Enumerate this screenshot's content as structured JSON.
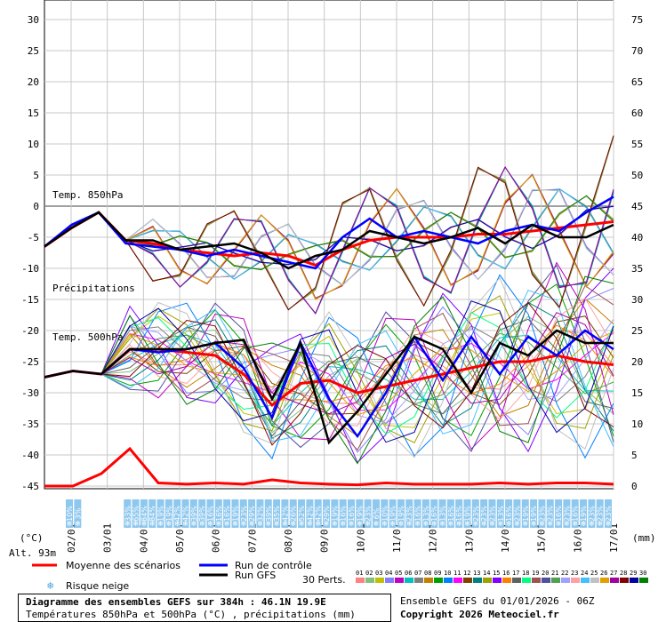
{
  "chart_data": {
    "type": "line",
    "y_left": {
      "unit": "(°C)",
      "ticks": [
        30,
        25,
        20,
        15,
        10,
        5,
        0,
        -5,
        -10,
        -15,
        -20,
        -25,
        -30,
        -35,
        -40,
        -45
      ]
    },
    "y_right": {
      "unit": "(mm)",
      "ticks": [
        75,
        70,
        65,
        60,
        55,
        50,
        45,
        40,
        35,
        30,
        25,
        20,
        15,
        10,
        5,
        0
      ]
    },
    "x_dates": [
      "02/01",
      "03/01",
      "04/01",
      "05/01",
      "06/01",
      "07/01",
      "08/01",
      "09/01",
      "10/01",
      "11/01",
      "12/01",
      "13/01",
      "14/01",
      "15/01",
      "16/01",
      "17/01"
    ],
    "panel_labels": {
      "t850": "Temp. 850hPa",
      "precip": "Précipitations",
      "t500": "Temp. 500hPa"
    },
    "altitude": "Alt. 93m",
    "snow_risk": [
      "10%",
      "3%",
      "",
      "",
      "",
      "",
      "",
      "33%",
      "65%",
      "84%",
      "84%",
      "19%",
      "19%",
      "42%",
      "42%",
      "39%",
      "39%",
      "16%",
      "16%",
      "16%",
      "19%",
      "23%",
      "29%",
      "32%",
      "39%",
      "35%",
      "42%",
      "26%",
      "52%",
      "42%",
      "42%",
      "29%",
      "19%",
      "16%",
      "16%",
      "19%",
      "23%",
      "6%",
      "10%",
      "19%",
      "19%",
      "23%",
      "16%",
      "13%",
      "16%",
      "13%",
      "16%",
      "16%",
      "19%",
      "23%",
      "23%",
      "23%",
      "13%",
      "16%",
      "23%",
      "19%",
      "19%",
      "23%",
      "23%",
      "16%",
      "23%",
      "16%",
      "19%",
      "23%",
      "23%",
      "23%"
    ],
    "series": [
      {
        "name": "Moyenne des scénarios",
        "color": "#ff0000",
        "t850": [
          -6.5,
          -3.5,
          -1,
          -5.5,
          -6,
          -7,
          -7.5,
          -8,
          -7.5,
          -8,
          -9.5,
          -7,
          -5.5,
          -5,
          -5,
          -5,
          -4.5,
          -4.5,
          -4,
          -3.5,
          -3,
          -2.5
        ],
        "t500": [
          -27.5,
          -26.5,
          -27,
          -23,
          -23,
          -23.5,
          -24,
          -27,
          -32,
          -28.5,
          -28,
          -30,
          -29,
          -28,
          -27,
          -26,
          -25,
          -25,
          -24,
          -25,
          -25.5
        ],
        "precip": [
          0,
          0,
          2,
          6,
          0.5,
          0.3,
          0.5,
          0.3,
          1,
          0.5,
          0.3,
          0.2,
          0.5,
          0.3,
          0.3,
          0.3,
          0.5,
          0.3,
          0.5,
          0.5,
          0.3
        ]
      },
      {
        "name": "Run de contrôle",
        "color": "#0000ff",
        "t850": [
          -6.5,
          -3,
          -1,
          -6,
          -6.5,
          -7,
          -8,
          -7,
          -8,
          -9,
          -10,
          -5,
          -2,
          -5,
          -4,
          -5,
          -6,
          -4,
          -3,
          -4,
          -1,
          1.5
        ],
        "t500": [
          -27.5,
          -26.5,
          -27,
          -23,
          -23.5,
          -23,
          -22,
          -26,
          -34,
          -22,
          -31,
          -37,
          -30,
          -21,
          -28,
          -21,
          -27,
          -21,
          -24,
          -20,
          -23
        ]
      },
      {
        "name": "Run GFS",
        "color": "#000000",
        "t850": [
          -6.5,
          -3.5,
          -1,
          -5.5,
          -5.5,
          -7,
          -6.5,
          -6,
          -7.5,
          -10,
          -8,
          -7,
          -4,
          -5,
          -6,
          -5,
          -3.5,
          -6,
          -3,
          -5,
          -5,
          -3
        ],
        "t500": [
          -27.5,
          -26.5,
          -27,
          -23,
          -23,
          -23,
          -22,
          -21.5,
          -31,
          -22,
          -38,
          -33,
          -27,
          -21,
          -23,
          -30,
          -22,
          -24,
          -20,
          -22,
          -22
        ]
      }
    ],
    "perts_count_label": "30 Perts.",
    "pert_codes": [
      "01",
      "02",
      "03",
      "04",
      "05",
      "06",
      "07",
      "08",
      "09",
      "10",
      "11",
      "12",
      "13",
      "14",
      "15",
      "16",
      "17",
      "18",
      "19",
      "20",
      "21",
      "22",
      "23",
      "24",
      "25",
      "26",
      "27",
      "28",
      "29",
      "30"
    ],
    "pert_colors": [
      "#ff8080",
      "#80c080",
      "#c0c000",
      "#8080ff",
      "#c000c0",
      "#00c0c0",
      "#808080",
      "#c08000",
      "#00a000",
      "#0080ff",
      "#ff00ff",
      "#804000",
      "#008080",
      "#a0a000",
      "#8000ff",
      "#ff8000",
      "#606060",
      "#00ff80",
      "#a05050",
      "#5050a0",
      "#50a050",
      "#a0a0ff",
      "#ffa0a0",
      "#40c0ff",
      "#c0c0c0",
      "#e0a000",
      "#a000a0",
      "#800000",
      "#0000a0",
      "#008000"
    ]
  },
  "legend": {
    "mean": "Moyenne des scénarios",
    "control": "Run de contrôle",
    "gfs": "Run GFS",
    "snow": "Risque neige",
    "perts": "30 Perts."
  },
  "footer": {
    "title": "Diagramme des ensembles GEFS sur 384h : 46.1N 19.9E",
    "subtitle": "Températures 850hPa et 500hPa (°C) , précipitations (mm)",
    "ensemble": "Ensemble GEFS du 01/01/2026 - 06Z",
    "copyright": "Copyright 2026 Meteociel.fr"
  }
}
